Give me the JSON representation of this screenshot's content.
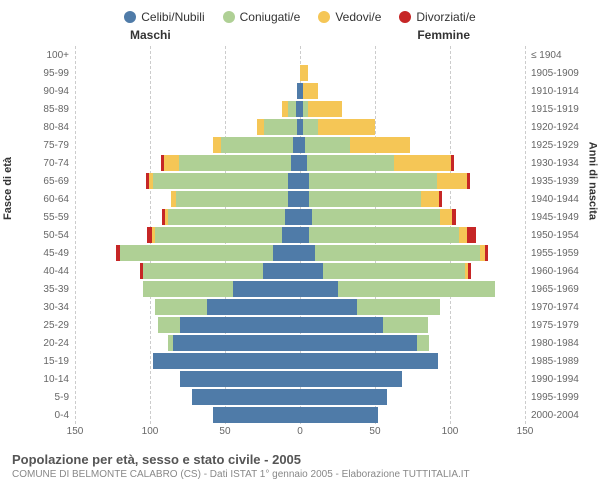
{
  "type": "population_pyramid",
  "legend": [
    {
      "label": "Celibi/Nubili",
      "color": "#4f7ba8"
    },
    {
      "label": "Coniugati/e",
      "color": "#afd095"
    },
    {
      "label": "Vedovi/e",
      "color": "#f5c656"
    },
    {
      "label": "Divorziati/e",
      "color": "#c62626"
    }
  ],
  "header_left": "Maschi",
  "header_right": "Femmine",
  "y_left_title": "Fasce di età",
  "y_right_title": "Anni di nascita",
  "x_max": 150,
  "x_ticks": [
    150,
    100,
    50,
    0,
    50,
    100,
    150
  ],
  "grid_values": [
    0,
    50,
    100,
    150
  ],
  "colors": {
    "celibi": "#4f7ba8",
    "coniugati": "#afd095",
    "vedovi": "#f5c656",
    "divorziati": "#c62626",
    "grid": "#cccccc",
    "text": "#666666"
  },
  "rows": [
    {
      "age": "100+",
      "year": "≤ 1904",
      "m": [
        0,
        0,
        0,
        0
      ],
      "f": [
        0,
        0,
        0,
        0
      ]
    },
    {
      "age": "95-99",
      "year": "1905-1909",
      "m": [
        0,
        0,
        0,
        0
      ],
      "f": [
        0,
        0,
        5,
        0
      ]
    },
    {
      "age": "90-94",
      "year": "1910-1914",
      "m": [
        2,
        0,
        0,
        0
      ],
      "f": [
        2,
        0,
        10,
        0
      ]
    },
    {
      "age": "85-89",
      "year": "1915-1919",
      "m": [
        3,
        5,
        4,
        0
      ],
      "f": [
        2,
        3,
        23,
        0
      ]
    },
    {
      "age": "80-84",
      "year": "1920-1924",
      "m": [
        2,
        22,
        5,
        0
      ],
      "f": [
        2,
        10,
        38,
        0
      ]
    },
    {
      "age": "75-79",
      "year": "1925-1929",
      "m": [
        5,
        48,
        5,
        0
      ],
      "f": [
        3,
        30,
        40,
        0
      ]
    },
    {
      "age": "70-74",
      "year": "1930-1934",
      "m": [
        6,
        75,
        10,
        2
      ],
      "f": [
        5,
        58,
        38,
        2
      ]
    },
    {
      "age": "65-69",
      "year": "1935-1939",
      "m": [
        8,
        90,
        3,
        2
      ],
      "f": [
        6,
        85,
        20,
        2
      ]
    },
    {
      "age": "60-64",
      "year": "1940-1944",
      "m": [
        8,
        75,
        3,
        0
      ],
      "f": [
        6,
        75,
        12,
        2
      ]
    },
    {
      "age": "55-59",
      "year": "1945-1949",
      "m": [
        10,
        78,
        2,
        2
      ],
      "f": [
        8,
        85,
        8,
        3
      ]
    },
    {
      "age": "50-54",
      "year": "1950-1954",
      "m": [
        12,
        85,
        2,
        3
      ],
      "f": [
        6,
        100,
        5,
        6
      ]
    },
    {
      "age": "45-49",
      "year": "1955-1959",
      "m": [
        18,
        102,
        0,
        3
      ],
      "f": [
        10,
        110,
        3,
        2
      ]
    },
    {
      "age": "40-44",
      "year": "1960-1964",
      "m": [
        25,
        80,
        0,
        2
      ],
      "f": [
        15,
        95,
        2,
        2
      ]
    },
    {
      "age": "35-39",
      "year": "1965-1969",
      "m": [
        45,
        60,
        0,
        0
      ],
      "f": [
        25,
        105,
        0,
        0
      ]
    },
    {
      "age": "30-34",
      "year": "1970-1974",
      "m": [
        62,
        35,
        0,
        0
      ],
      "f": [
        38,
        55,
        0,
        0
      ]
    },
    {
      "age": "25-29",
      "year": "1975-1979",
      "m": [
        80,
        15,
        0,
        0
      ],
      "f": [
        55,
        30,
        0,
        0
      ]
    },
    {
      "age": "20-24",
      "year": "1980-1984",
      "m": [
        85,
        3,
        0,
        0
      ],
      "f": [
        78,
        8,
        0,
        0
      ]
    },
    {
      "age": "15-19",
      "year": "1985-1989",
      "m": [
        98,
        0,
        0,
        0
      ],
      "f": [
        92,
        0,
        0,
        0
      ]
    },
    {
      "age": "10-14",
      "year": "1990-1994",
      "m": [
        80,
        0,
        0,
        0
      ],
      "f": [
        68,
        0,
        0,
        0
      ]
    },
    {
      "age": "5-9",
      "year": "1995-1999",
      "m": [
        72,
        0,
        0,
        0
      ],
      "f": [
        58,
        0,
        0,
        0
      ]
    },
    {
      "age": "0-4",
      "year": "2000-2004",
      "m": [
        58,
        0,
        0,
        0
      ],
      "f": [
        52,
        0,
        0,
        0
      ]
    }
  ],
  "footer_title": "Popolazione per età, sesso e stato civile - 2005",
  "footer_sub": "COMUNE DI BELMONTE CALABRO (CS) - Dati ISTAT 1° gennaio 2005 - Elaborazione TUTTITALIA.IT"
}
